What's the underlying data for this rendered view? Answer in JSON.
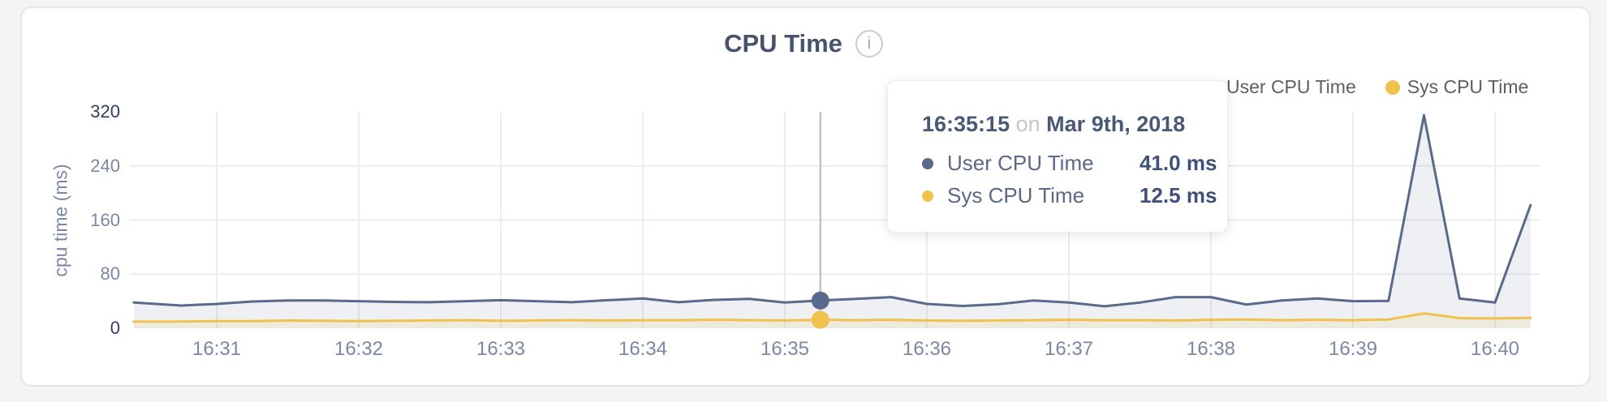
{
  "page": {
    "background": "#f4f4f5",
    "card_background": "#ffffff"
  },
  "header": {
    "title": "CPU Time",
    "info_glyph": "i"
  },
  "legend": {
    "items": [
      {
        "label": "User CPU Time",
        "color": "#596a8d"
      },
      {
        "label": "Sys CPU Time",
        "color": "#f0c24b"
      }
    ]
  },
  "tooltip": {
    "time": "16:35:15",
    "connector": "on",
    "date": "Mar 9th, 2018",
    "rows": [
      {
        "label": "User CPU Time",
        "value": "41.0 ms",
        "color": "#596a8d"
      },
      {
        "label": "Sys CPU Time",
        "value": "12.5 ms",
        "color": "#f0c24b"
      }
    ]
  },
  "chart_data": {
    "type": "area",
    "title": "CPU Time",
    "xlabel": "",
    "ylabel": "cpu time (ms)",
    "ylim": [
      0,
      320
    ],
    "yticks": [
      0,
      80,
      160,
      240,
      320
    ],
    "xticks": [
      "16:31",
      "16:32",
      "16:33",
      "16:34",
      "16:35",
      "16:36",
      "16:37",
      "16:38",
      "16:39",
      "16:40"
    ],
    "grid": true,
    "legend_position": "top-right",
    "colors": {
      "grid": "#ececec",
      "crosshair": "#b3b8bd"
    },
    "x": [
      "16:30:25",
      "16:30:45",
      "16:31:00",
      "16:31:15",
      "16:31:30",
      "16:31:45",
      "16:32:00",
      "16:32:15",
      "16:32:30",
      "16:32:45",
      "16:33:00",
      "16:33:15",
      "16:33:30",
      "16:33:45",
      "16:34:00",
      "16:34:15",
      "16:34:30",
      "16:34:45",
      "16:35:00",
      "16:35:15",
      "16:35:30",
      "16:35:45",
      "16:36:00",
      "16:36:15",
      "16:36:30",
      "16:36:45",
      "16:37:00",
      "16:37:15",
      "16:37:30",
      "16:37:45",
      "16:38:00",
      "16:38:15",
      "16:38:30",
      "16:38:45",
      "16:39:00",
      "16:39:15",
      "16:39:30",
      "16:39:45",
      "16:40:00",
      "16:40:15"
    ],
    "series": [
      {
        "name": "User CPU Time",
        "unit": "ms",
        "color": "#596a8d",
        "fill": "rgba(90,106,140,0.10)",
        "values": [
          38,
          33.5,
          36,
          39.5,
          41,
          41,
          40,
          39,
          38.5,
          40,
          41.5,
          40,
          38.5,
          41.5,
          44,
          38.5,
          42,
          43.5,
          38,
          41,
          43.5,
          46,
          36,
          33,
          35.5,
          41,
          38,
          32.5,
          38,
          46,
          46,
          35,
          41,
          44,
          40,
          40.5,
          315,
          44,
          38,
          182
        ]
      },
      {
        "name": "Sys CPU Time",
        "unit": "ms",
        "color": "#f0c24b",
        "fill": "rgba(240,194,75,0.13)",
        "values": [
          10,
          10,
          10.5,
          10.5,
          11.5,
          11,
          10.5,
          11,
          11.5,
          12,
          11,
          11.5,
          12,
          11.5,
          12,
          12,
          12.5,
          12,
          11.5,
          12.5,
          12,
          12.5,
          11.5,
          11,
          11.5,
          12,
          12.5,
          12,
          12,
          11.5,
          12.5,
          13,
          12,
          12.5,
          12,
          13,
          22,
          15,
          14.5,
          15.5
        ]
      }
    ],
    "hover": {
      "time": "16:35:15",
      "values": [
        41.0,
        12.5
      ]
    }
  }
}
